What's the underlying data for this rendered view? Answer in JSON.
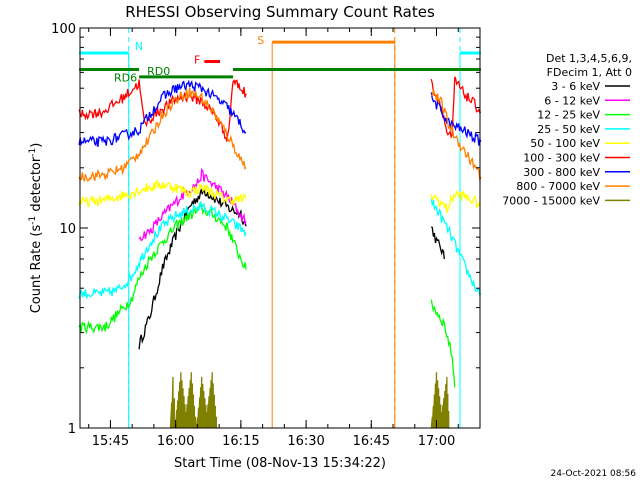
{
  "chart_data": {
    "type": "line",
    "title": "RHESSI Observing Summary Count Rates",
    "xlabel": "Start Time (08-Nov-13 15:34:22)",
    "ylabel": "Count Rate (s⁻¹ detector⁻¹)",
    "ylabel_main": "Count Rate (s",
    "ylabel_sup1": "-1",
    "ylabel_mid": " detector",
    "ylabel_sup2": "-1",
    "ylabel_end": ")",
    "yscale": "log",
    "ylim": [
      1,
      100
    ],
    "xlim": [
      15.6333,
      17.1667
    ],
    "xunit": "hours UT",
    "yticks": [
      {
        "v": 1,
        "label": "1"
      },
      {
        "v": 10,
        "label": "10"
      },
      {
        "v": 100,
        "label": "100"
      }
    ],
    "xticks": [
      {
        "v": 15.75,
        "label": "15:45"
      },
      {
        "v": 16.0,
        "label": "16:00"
      },
      {
        "v": 16.25,
        "label": "16:15"
      },
      {
        "v": 16.5,
        "label": "16:30"
      },
      {
        "v": 16.75,
        "label": "16:45"
      },
      {
        "v": 17.0,
        "label": "17:00"
      }
    ],
    "legend_header": [
      "Det 1,3,4,5,6,9,",
      "FDecim 1, Att 0"
    ],
    "legend_position": "right",
    "series": [
      {
        "name": "3 - 6 keV",
        "color": "#000000",
        "points": [
          [
            15.86,
            2.6
          ],
          [
            15.9,
            3.6
          ],
          [
            15.95,
            6.3
          ],
          [
            16.0,
            9.2
          ],
          [
            16.06,
            13.2
          ],
          [
            16.11,
            15.4
          ],
          [
            16.17,
            13.5
          ],
          [
            16.21,
            12.4
          ],
          [
            16.25,
            11.8
          ],
          [
            16.27,
            10.2
          ],
          [
            16.98,
            10.2
          ],
          [
            17.0,
            8.6
          ],
          [
            17.02,
            7.8
          ],
          [
            17.03,
            7.0
          ]
        ]
      },
      {
        "name": "6 - 12 keV",
        "color": "#ff00ff",
        "points": [
          [
            15.86,
            9.0
          ],
          [
            15.9,
            9.6
          ],
          [
            15.95,
            11.5
          ],
          [
            16.0,
            13.5
          ],
          [
            16.04,
            15.2
          ],
          [
            16.08,
            16.5
          ],
          [
            16.1,
            18.5
          ],
          [
            16.13,
            17.0
          ],
          [
            16.17,
            15.5
          ],
          [
            16.21,
            13.8
          ],
          [
            16.25,
            11.5
          ],
          [
            16.27,
            10.8
          ]
        ]
      },
      {
        "name": "12 - 25 keV",
        "color": "#00ff00",
        "points": [
          [
            15.63,
            3.2
          ],
          [
            15.73,
            3.2
          ],
          [
            15.83,
            4.4
          ],
          [
            15.86,
            5.6
          ],
          [
            15.9,
            7.0
          ],
          [
            15.95,
            8.5
          ],
          [
            16.0,
            10.2
          ],
          [
            16.05,
            11.5
          ],
          [
            16.1,
            12.5
          ],
          [
            16.15,
            11.5
          ],
          [
            16.2,
            10.0
          ],
          [
            16.23,
            8.0
          ],
          [
            16.27,
            6.2
          ],
          [
            16.98,
            4.2
          ],
          [
            17.03,
            3.3
          ],
          [
            17.06,
            2.3
          ],
          [
            17.07,
            1.6
          ]
        ]
      },
      {
        "name": "25 - 50 keV",
        "color": "#00ffff",
        "points": [
          [
            15.63,
            4.7
          ],
          [
            15.72,
            4.7
          ],
          [
            15.78,
            4.9
          ],
          [
            15.83,
            5.7
          ],
          [
            15.9,
            8.4
          ],
          [
            15.95,
            10.2
          ],
          [
            16.0,
            11.5
          ],
          [
            16.05,
            12.3
          ],
          [
            16.1,
            12.8
          ],
          [
            16.15,
            12.0
          ],
          [
            16.2,
            11.0
          ],
          [
            16.27,
            9.5
          ],
          [
            16.98,
            13.5
          ],
          [
            17.0,
            12.5
          ],
          [
            17.05,
            9.5
          ],
          [
            17.1,
            6.8
          ],
          [
            17.15,
            5.0
          ],
          [
            17.17,
            4.7
          ]
        ]
      },
      {
        "name": "50 - 100 keV",
        "color": "#ffff00",
        "points": [
          [
            15.63,
            13.4
          ],
          [
            15.73,
            13.8
          ],
          [
            15.83,
            15.0
          ],
          [
            15.86,
            15.5
          ],
          [
            15.9,
            16.0
          ],
          [
            15.95,
            16.5
          ],
          [
            16.0,
            16.0
          ],
          [
            16.05,
            15.0
          ],
          [
            16.1,
            16.0
          ],
          [
            16.15,
            14.8
          ],
          [
            16.2,
            13.8
          ],
          [
            16.27,
            14.0
          ],
          [
            16.98,
            14.5
          ],
          [
            17.0,
            14.0
          ],
          [
            17.04,
            12.5
          ],
          [
            17.07,
            14.8
          ],
          [
            17.1,
            14.5
          ],
          [
            17.15,
            13.5
          ],
          [
            17.17,
            13.0
          ]
        ]
      },
      {
        "name": "100 - 300 keV",
        "color": "#ff0000",
        "points": [
          [
            15.63,
            37.0
          ],
          [
            15.72,
            38.0
          ],
          [
            15.8,
            45.0
          ],
          [
            15.86,
            53.0
          ],
          [
            15.88,
            33.0
          ],
          [
            15.93,
            38.0
          ],
          [
            16.0,
            44.0
          ],
          [
            16.05,
            46.0
          ],
          [
            16.1,
            43.0
          ],
          [
            16.15,
            37.0
          ],
          [
            16.2,
            28.0
          ],
          [
            16.22,
            55.0
          ],
          [
            16.25,
            50.0
          ],
          [
            16.27,
            47.0
          ],
          [
            16.98,
            53.0
          ],
          [
            17.02,
            40.0
          ],
          [
            17.04,
            30.0
          ],
          [
            17.06,
            28.0
          ],
          [
            17.07,
            55.0
          ],
          [
            17.1,
            48.0
          ],
          [
            17.15,
            41.0
          ],
          [
            17.17,
            38.0
          ]
        ]
      },
      {
        "name": "300 - 800 keV",
        "color": "#0000ff",
        "points": [
          [
            15.63,
            27.0
          ],
          [
            15.73,
            27.0
          ],
          [
            15.8,
            29.0
          ],
          [
            15.86,
            31.0
          ],
          [
            15.9,
            37.0
          ],
          [
            15.95,
            45.0
          ],
          [
            16.0,
            50.0
          ],
          [
            16.05,
            52.0
          ],
          [
            16.1,
            50.0
          ],
          [
            16.15,
            45.0
          ],
          [
            16.2,
            40.0
          ],
          [
            16.25,
            33.0
          ],
          [
            16.27,
            30.0
          ],
          [
            16.98,
            45.0
          ],
          [
            17.02,
            38.0
          ],
          [
            17.05,
            33.0
          ],
          [
            17.1,
            31.0
          ],
          [
            17.15,
            28.0
          ],
          [
            17.17,
            27.0
          ]
        ]
      },
      {
        "name": "800 - 7000 keV",
        "color": "#ff8000",
        "points": [
          [
            15.63,
            18.0
          ],
          [
            15.73,
            18.5
          ],
          [
            15.8,
            20.0
          ],
          [
            15.85,
            23.0
          ],
          [
            15.9,
            28.0
          ],
          [
            15.95,
            37.0
          ],
          [
            16.0,
            44.0
          ],
          [
            16.05,
            48.0
          ],
          [
            16.1,
            45.0
          ],
          [
            16.15,
            37.0
          ],
          [
            16.2,
            29.0
          ],
          [
            16.25,
            22.0
          ],
          [
            16.27,
            20.0
          ],
          [
            16.98,
            49.0
          ],
          [
            17.02,
            42.0
          ],
          [
            17.05,
            32.0
          ],
          [
            17.1,
            25.0
          ],
          [
            17.15,
            20.0
          ],
          [
            17.17,
            18.0
          ]
        ]
      },
      {
        "name": "7000 - 15000 keV",
        "color": "#808000",
        "points": [
          [
            15.98,
            1.0
          ],
          [
            15.99,
            1.8
          ],
          [
            16.0,
            1.1
          ],
          [
            16.02,
            1.9
          ],
          [
            16.04,
            1.2
          ],
          [
            16.06,
            1.9
          ],
          [
            16.08,
            1.0
          ],
          [
            16.1,
            1.8
          ],
          [
            16.12,
            1.2
          ],
          [
            16.14,
            1.9
          ],
          [
            16.16,
            1.0
          ],
          [
            16.98,
            1.0
          ],
          [
            17.0,
            1.9
          ],
          [
            17.02,
            1.2
          ],
          [
            17.04,
            1.8
          ],
          [
            17.05,
            1.0
          ]
        ]
      }
    ],
    "annotations": [
      {
        "id": "N",
        "label": "N",
        "color": "#00ffff",
        "segments": [
          [
            15.63,
            15.82
          ],
          [
            17.09,
            17.17
          ]
        ],
        "y": 75,
        "vlines": [
          15.82,
          17.09
        ]
      },
      {
        "id": "RD6",
        "label": "RD6",
        "color": "#008000",
        "segments": [
          [
            15.63,
            15.86
          ]
        ],
        "y": 62
      },
      {
        "id": "RD0",
        "label": "RD0",
        "color": "#008000",
        "segments": [
          [
            15.86,
            16.22
          ]
        ],
        "y": 57
      },
      {
        "id": "F",
        "label": "F",
        "color": "#ff0000",
        "segments": [
          [
            16.11,
            16.17
          ]
        ],
        "y": 68
      },
      {
        "id": "S",
        "label": "S",
        "color": "#ff8000",
        "segments": [
          [
            16.37,
            16.84
          ]
        ],
        "y": 85,
        "vlines": [
          16.37,
          16.84
        ]
      },
      {
        "id": "RD0b",
        "label": "",
        "color": "#008000",
        "segments": [
          [
            16.22,
            17.17
          ]
        ],
        "y": 62
      }
    ],
    "dashed_vlines": [
      {
        "x": 15.82,
        "color": "#00ffff"
      },
      {
        "x": 16.84,
        "color": "#ff8000"
      },
      {
        "x": 17.09,
        "color": "#00ffff"
      }
    ]
  },
  "footer": {
    "timestamp": "24-Oct-2021 08:56"
  }
}
